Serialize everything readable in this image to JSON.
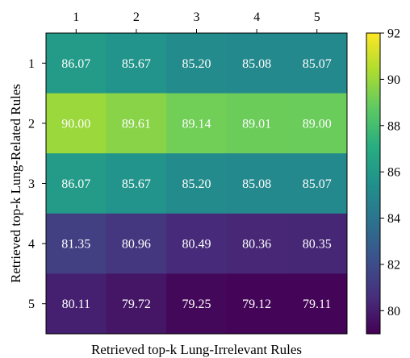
{
  "chart_data": {
    "type": "heatmap",
    "xlabel": "Retrieved top-k Lung-Irrelevant Rules",
    "ylabel": "Retrieved top-k Lung-Related Rules",
    "x_categories": [
      "1",
      "2",
      "3",
      "4",
      "5"
    ],
    "y_categories": [
      "1",
      "2",
      "3",
      "4",
      "5"
    ],
    "values": [
      [
        86.07,
        85.67,
        85.2,
        85.08,
        85.07
      ],
      [
        90.0,
        89.61,
        89.14,
        89.01,
        89.0
      ],
      [
        86.07,
        85.67,
        85.2,
        85.08,
        85.07
      ],
      [
        81.35,
        80.96,
        80.49,
        80.36,
        80.35
      ],
      [
        80.11,
        79.72,
        79.25,
        79.12,
        79.11
      ]
    ],
    "value_labels": [
      [
        "86.07",
        "85.67",
        "85.20",
        "85.08",
        "85.07"
      ],
      [
        "90.00",
        "89.61",
        "89.14",
        "89.01",
        "89.00"
      ],
      [
        "86.07",
        "85.67",
        "85.20",
        "85.08",
        "85.07"
      ],
      [
        "81.35",
        "80.96",
        "80.49",
        "80.36",
        "80.35"
      ],
      [
        "80.11",
        "79.72",
        "79.25",
        "79.12",
        "79.11"
      ]
    ],
    "x_axis_position": "top",
    "colormap": "viridis",
    "color_range": [
      79,
      92
    ],
    "colorbar_ticks": [
      80,
      82,
      84,
      86,
      88,
      90,
      92
    ],
    "colorbar_tick_labels": [
      "80",
      "82",
      "84",
      "86",
      "88",
      "90",
      "92"
    ]
  }
}
